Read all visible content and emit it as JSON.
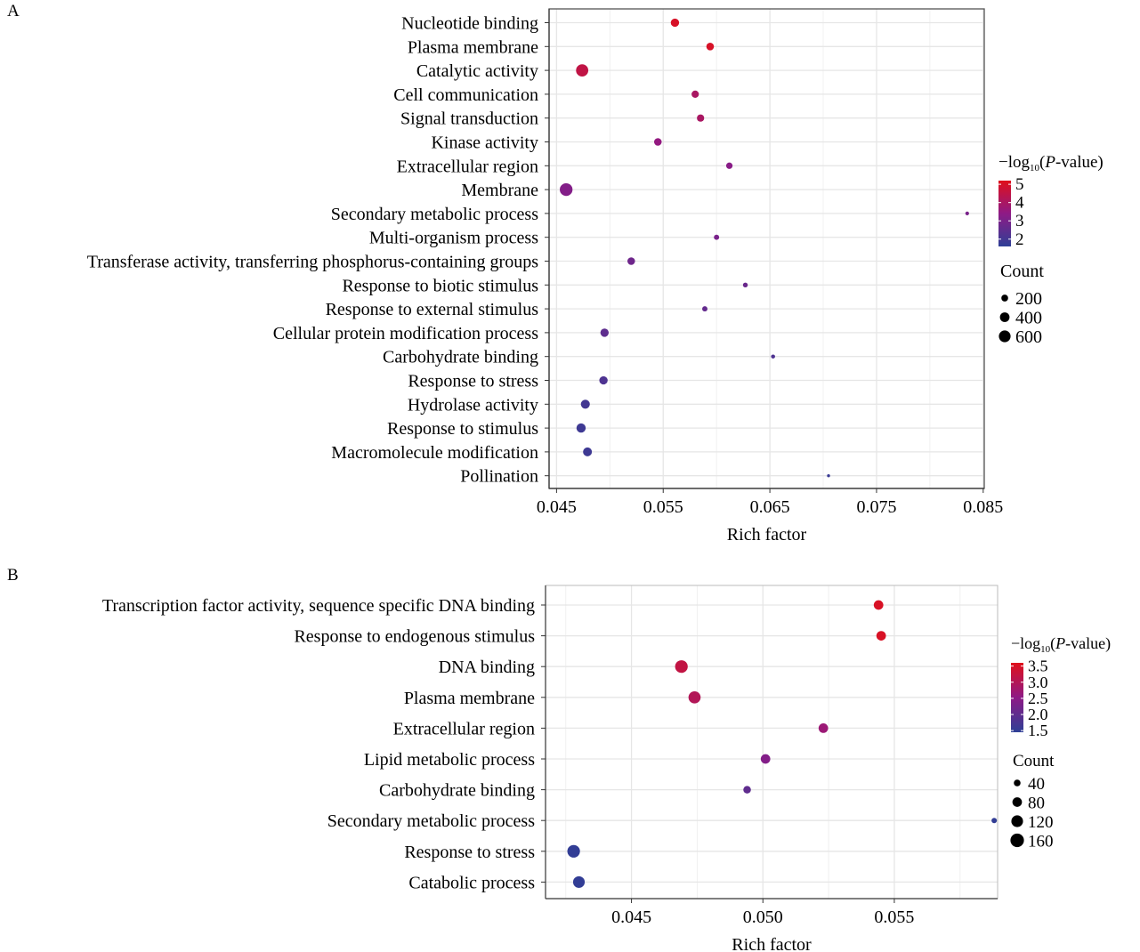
{
  "chart_data": [
    {
      "panel": "A",
      "type": "scatter",
      "title": "",
      "xlabel": "Rich factor",
      "ylabel": "",
      "xlim": [
        0.0443,
        0.0851
      ],
      "xticks": [
        "0.045",
        "0.055",
        "0.065",
        "0.075",
        "0.085"
      ],
      "xtick_values": [
        0.045,
        0.055,
        0.065,
        0.075,
        0.085
      ],
      "grid": true,
      "categories": [
        "Nucleotide binding",
        "Plasma membrane",
        "Catalytic activity",
        "Cell communication",
        "Signal transduction",
        "Kinase activity",
        "Extracellular region",
        "Membrane",
        "Secondary metabolic process",
        "Multi-organism process",
        "Transferase activity, transferring phosphorus-containing groups",
        "Response to biotic stimulus",
        "Response to external stimulus",
        "Cellular protein modification process",
        "Carbohydrate binding",
        "Response to stress",
        "Hydrolase activity",
        "Response to stimulus",
        "Macromolecule modification",
        "Pollination"
      ],
      "rich_factor": [
        0.0561,
        0.0594,
        0.0474,
        0.058,
        0.0585,
        0.0545,
        0.0612,
        0.0459,
        0.0835,
        0.06,
        0.052,
        0.0627,
        0.0589,
        0.0495,
        0.0653,
        0.0494,
        0.0477,
        0.0473,
        0.0479,
        0.0705
      ],
      "neg_log10_p": [
        5.0,
        5.0,
        4.5,
        4.0,
        4.0,
        3.5,
        3.3,
        3.2,
        3.0,
        3.0,
        2.8,
        2.7,
        2.6,
        2.5,
        2.2,
        2.2,
        2.0,
        1.9,
        1.9,
        1.8
      ],
      "count": [
        300,
        250,
        650,
        230,
        230,
        250,
        180,
        700,
        60,
        120,
        250,
        100,
        120,
        300,
        70,
        300,
        350,
        370,
        340,
        40
      ],
      "color_legend": {
        "title_prefix": "−log",
        "title_sub": "10",
        "title_open": "(",
        "title_italic": "P",
        "title_suffix": "-value)",
        "ticks": [
          "5",
          "4",
          "3",
          "2"
        ],
        "tick_values": [
          5,
          4,
          3,
          2
        ],
        "range": [
          1.6,
          5.2
        ]
      },
      "size_legend": {
        "title": "Count",
        "labels": [
          "200",
          "400",
          "600"
        ],
        "values": [
          200,
          400,
          600
        ]
      },
      "low_color": "#2E3F96",
      "mid_color": "#8E1A86",
      "high_color": "#E0101B"
    },
    {
      "panel": "B",
      "type": "scatter",
      "title": "",
      "xlabel": "Rich factor",
      "ylabel": "",
      "xlim": [
        0.04173,
        0.05893
      ],
      "xticks": [
        "0.045",
        "0.050",
        "0.055"
      ],
      "xtick_values": [
        0.045,
        0.05,
        0.055
      ],
      "grid": true,
      "categories": [
        "Transcription factor activity, sequence specific DNA binding",
        "Response to endogenous stimulus",
        "DNA binding",
        "Plasma membrane",
        "Extracellular region",
        "Lipid metabolic process",
        "Carbohydrate binding",
        "Secondary metabolic process",
        "Response to stress",
        "Catabolic process"
      ],
      "rich_factor": [
        0.0544,
        0.0545,
        0.0469,
        0.0474,
        0.0523,
        0.0501,
        0.0494,
        0.0588,
        0.0428,
        0.043
      ],
      "neg_log10_p": [
        3.5,
        3.5,
        3.2,
        3.0,
        2.7,
        2.4,
        2.0,
        1.5,
        1.5,
        1.5
      ],
      "count": [
        80,
        80,
        140,
        130,
        80,
        80,
        50,
        25,
        140,
        120
      ],
      "color_legend": {
        "title_prefix": "−log",
        "title_sub": "10",
        "title_open": "(",
        "title_italic": "P",
        "title_suffix": "-value)",
        "ticks": [
          "3.5",
          "3.0",
          "2.5",
          "2.0",
          "1.5"
        ],
        "tick_values": [
          3.5,
          3.0,
          2.5,
          2.0,
          1.5
        ],
        "range": [
          1.45,
          3.6
        ]
      },
      "size_legend": {
        "title": "Count",
        "labels": [
          "40",
          "80",
          "120",
          "160"
        ],
        "values": [
          40,
          80,
          120,
          160
        ]
      },
      "low_color": "#2E3F96",
      "mid_color": "#8E1A86",
      "high_color": "#E0101B"
    }
  ]
}
